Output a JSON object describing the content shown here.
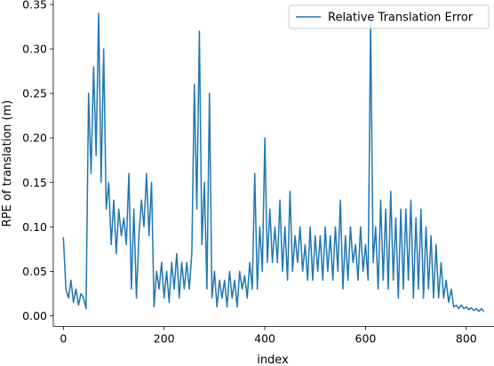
{
  "chart_data": {
    "type": "line",
    "xlabel": "index",
    "ylabel": "RPE of translation (m)",
    "xlim": [
      -20,
      855
    ],
    "ylim": [
      -0.012,
      0.355
    ],
    "xticks": [
      0,
      200,
      400,
      600,
      800
    ],
    "yticks": [
      0.0,
      0.05,
      0.1,
      0.15,
      0.2,
      0.25,
      0.3,
      0.35
    ],
    "ytick_labels": [
      "0.00",
      "0.05",
      "0.10",
      "0.15",
      "0.20",
      "0.25",
      "0.30",
      "0.35"
    ],
    "xtick_labels": [
      "0",
      "200",
      "400",
      "600",
      "800"
    ],
    "legend_position": "top-right",
    "series": [
      {
        "name": "Relative Translation Error",
        "color": "#1f77b4",
        "x_start": 0,
        "x_step": 5,
        "values": [
          0.088,
          0.03,
          0.02,
          0.04,
          0.015,
          0.03,
          0.012,
          0.025,
          0.02,
          0.008,
          0.25,
          0.16,
          0.28,
          0.18,
          0.34,
          0.15,
          0.3,
          0.12,
          0.15,
          0.08,
          0.13,
          0.07,
          0.12,
          0.09,
          0.11,
          0.08,
          0.16,
          0.03,
          0.12,
          0.02,
          0.09,
          0.13,
          0.1,
          0.16,
          0.09,
          0.15,
          0.01,
          0.05,
          0.03,
          0.06,
          0.02,
          0.05,
          0.015,
          0.06,
          0.03,
          0.07,
          0.02,
          0.06,
          0.03,
          0.06,
          0.03,
          0.07,
          0.26,
          0.12,
          0.32,
          0.08,
          0.15,
          0.03,
          0.25,
          0.02,
          0.05,
          0.01,
          0.04,
          0.02,
          0.04,
          0.01,
          0.05,
          0.02,
          0.04,
          0.01,
          0.05,
          0.03,
          0.045,
          0.02,
          0.06,
          0.03,
          0.16,
          0.03,
          0.1,
          0.05,
          0.2,
          0.06,
          0.12,
          0.06,
          0.1,
          0.06,
          0.13,
          0.05,
          0.1,
          0.04,
          0.14,
          0.05,
          0.09,
          0.06,
          0.1,
          0.05,
          0.08,
          0.04,
          0.1,
          0.04,
          0.09,
          0.05,
          0.09,
          0.04,
          0.1,
          0.05,
          0.09,
          0.04,
          0.1,
          0.05,
          0.13,
          0.03,
          0.09,
          0.04,
          0.1,
          0.06,
          0.08,
          0.04,
          0.1,
          0.05,
          0.08,
          0.04,
          0.33,
          0.06,
          0.1,
          0.03,
          0.13,
          0.04,
          0.12,
          0.03,
          0.14,
          0.04,
          0.11,
          0.02,
          0.12,
          0.03,
          0.12,
          0.04,
          0.13,
          0.02,
          0.11,
          0.03,
          0.12,
          0.02,
          0.1,
          0.03,
          0.09,
          0.02,
          0.08,
          0.02,
          0.06,
          0.02,
          0.04,
          0.015,
          0.03,
          0.01,
          0.012,
          0.008,
          0.012,
          0.008,
          0.01,
          0.007,
          0.009,
          0.006,
          0.008,
          0.005,
          0.008,
          0.005
        ]
      }
    ]
  }
}
